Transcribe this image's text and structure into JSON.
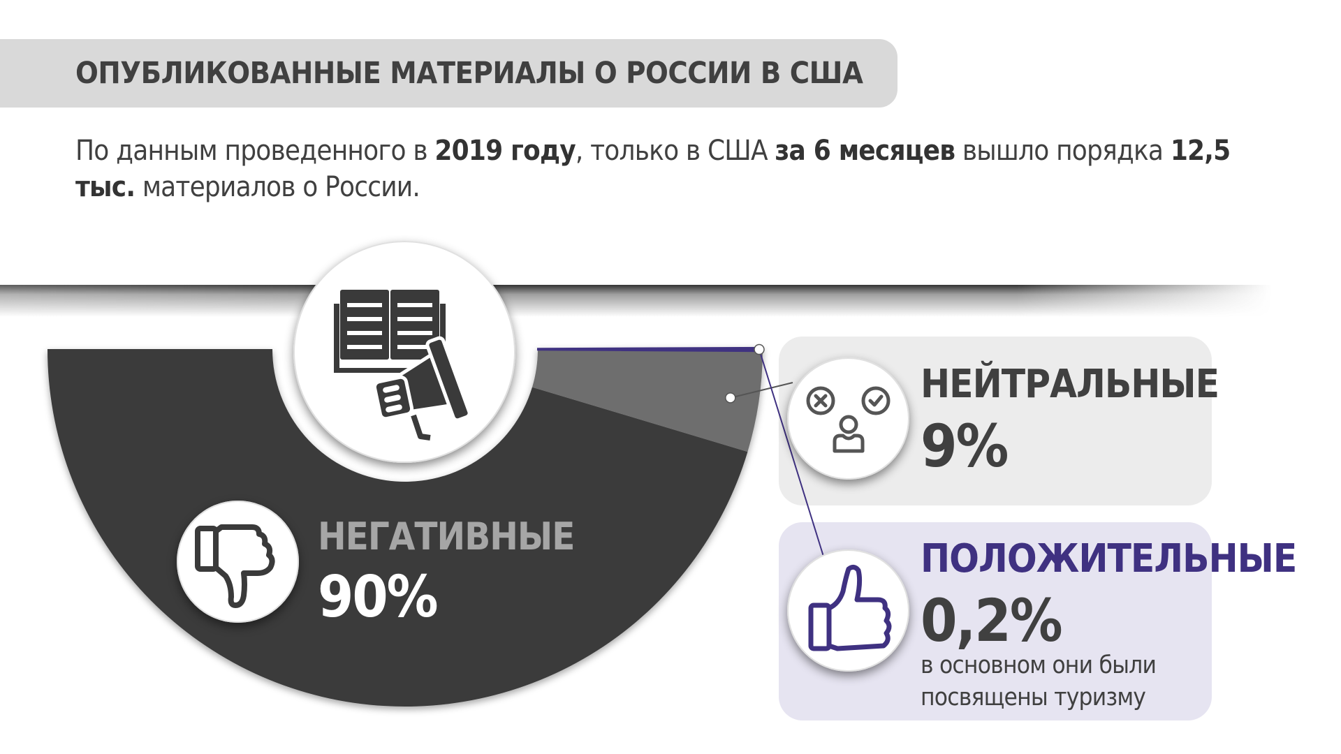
{
  "header": {
    "title": "ОПУБЛИКОВАННЫЕ МАТЕРИАЛЫ О РОССИИ В США"
  },
  "intro": {
    "t1": "По данным проведенного в ",
    "b1": "2019 году",
    "t2": ", только в США ",
    "b2": "за 6 месяцев",
    "t3": " вышло порядка ",
    "b3": "12,5 тыс.",
    "t4": " материалов о России."
  },
  "chart_data": {
    "type": "pie",
    "variant": "semicircle-donut",
    "title": "",
    "categories": [
      "НЕГАТИВНЫЕ",
      "НЕЙТРАЛЬНЫЕ",
      "ПОЛОЖИТЕЛЬНЫЕ"
    ],
    "values": [
      90,
      9,
      0.2
    ],
    "value_labels": [
      "90%",
      "9%",
      "0,2%"
    ],
    "unit": "%",
    "colors": [
      "#3a3a3a",
      "#6e6e6e",
      "#3f3181"
    ],
    "notes": {
      "ПОЛОЖИТЕЛЬНЫЕ": "в основном они были посвящены туризму"
    }
  },
  "icons": {
    "center": "book-megaphone-icon",
    "negative": "thumbs-down-icon",
    "neutral": "neutral-faces-icon",
    "positive": "thumbs-up-icon"
  },
  "colors": {
    "positive_accent": "#3f3181",
    "neutral_card": "#ececec",
    "positive_card": "#e6e4f1",
    "title_bar": "#d9d9d9"
  }
}
